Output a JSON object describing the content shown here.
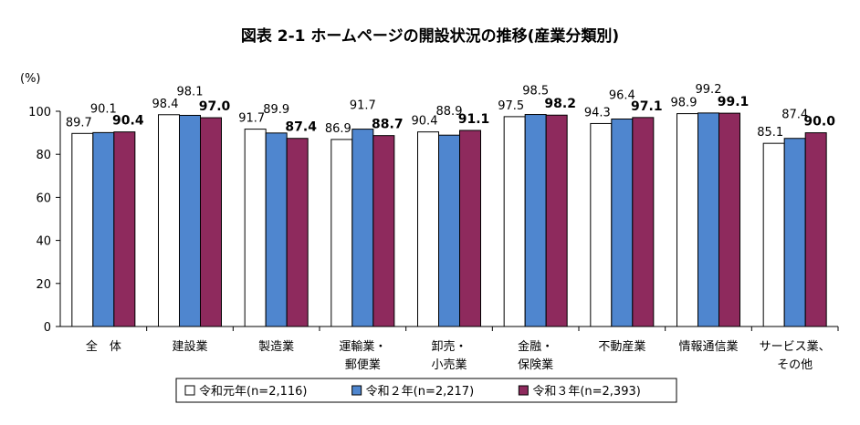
{
  "chart_data": {
    "type": "bar",
    "title": "図表 2-1 ホームページの開設状況の推移(産業分類別)",
    "unit_label": "(%)",
    "ylim": [
      0,
      100
    ],
    "yticks": [
      0,
      20,
      40,
      60,
      80,
      100
    ],
    "grid": false,
    "legend_position": "bottom",
    "categories": [
      [
        "全　体"
      ],
      [
        "建設業"
      ],
      [
        "製造業"
      ],
      [
        "運輸業・",
        "郵便業"
      ],
      [
        "卸売・",
        "小売業"
      ],
      [
        "金融・",
        "保険業"
      ],
      [
        "不動産業"
      ],
      [
        "情報通信業"
      ],
      [
        "サービス業、",
        "その他"
      ]
    ],
    "series": [
      {
        "name": "令和元年(n=2,116)",
        "color": "#ffffff",
        "bold_labels": false,
        "values": [
          89.7,
          98.4,
          91.7,
          86.9,
          90.4,
          97.5,
          94.3,
          98.9,
          85.1
        ]
      },
      {
        "name": "令和２年(n=2,217)",
        "color": "#4f86cf",
        "bold_labels": false,
        "values": [
          90.1,
          98.1,
          89.9,
          91.7,
          88.9,
          98.5,
          96.4,
          99.2,
          87.4
        ]
      },
      {
        "name": "令和３年(n=2,393)",
        "color": "#8e2a5d",
        "bold_labels": true,
        "values": [
          90.4,
          97.0,
          87.4,
          88.7,
          91.1,
          98.2,
          97.1,
          99.1,
          90.0
        ]
      }
    ]
  }
}
